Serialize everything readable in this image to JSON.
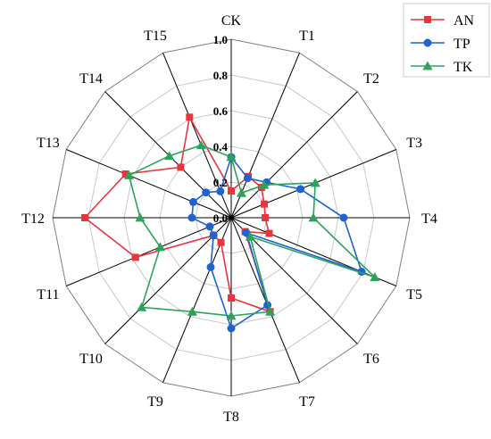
{
  "chart_data": {
    "type": "radar",
    "categories": [
      "CK",
      "T1",
      "T2",
      "T3",
      "T4",
      "T5",
      "T6",
      "T7",
      "T8",
      "T9",
      "T10",
      "T11",
      "T12",
      "T13",
      "T14",
      "T15"
    ],
    "rlim": [
      0,
      1.0
    ],
    "ticks": [
      "0.0",
      "0.2",
      "0.4",
      "0.6",
      "0.8",
      "1.0"
    ],
    "tick_values": [
      0,
      0.2,
      0.4,
      0.6,
      0.8,
      1.0
    ],
    "grid": true,
    "legend_position": "top-right",
    "series": [
      {
        "name": "AN",
        "color": "#e8353e",
        "marker": "square",
        "values": [
          0.15,
          0.25,
          0.24,
          0.2,
          0.19,
          0.23,
          0.11,
          0.57,
          0.45,
          0.15,
          0.14,
          0.58,
          0.82,
          0.64,
          0.4,
          0.61
        ]
      },
      {
        "name": "TP",
        "color": "#1f63d1",
        "marker": "circle",
        "values": [
          0.34,
          0.24,
          0.28,
          0.42,
          0.63,
          0.79,
          0.12,
          0.53,
          0.62,
          0.3,
          0.14,
          0.13,
          0.22,
          0.23,
          0.2,
          0.16
        ]
      },
      {
        "name": "TK",
        "color": "#2ba35a",
        "marker": "triangle",
        "values": [
          0.34,
          0.15,
          0.26,
          0.51,
          0.46,
          0.87,
          0.15,
          0.57,
          0.55,
          0.57,
          0.71,
          0.43,
          0.51,
          0.62,
          0.49,
          0.44
        ]
      }
    ]
  }
}
